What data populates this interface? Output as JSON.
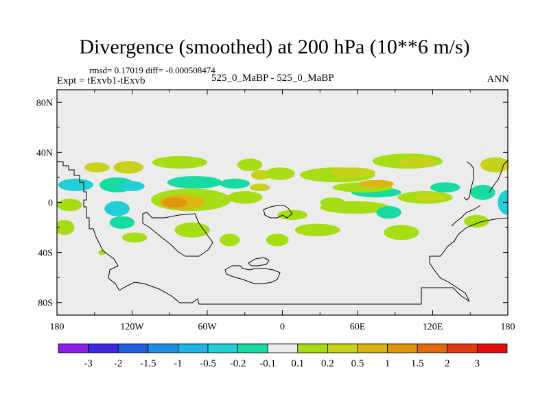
{
  "chart_data": {
    "type": "heatmap",
    "title": "Divergence (smoothed) at 200 hPa (10**6 m/s)",
    "stats_line": "rmsd= 0.17019 diff= -0.000508474",
    "left_label": "Expt = tExvb1-tExvb",
    "center_label": "525_0_MaBP - 525_0_MaBP",
    "right_label": "ANN",
    "x_ticks": [
      {
        "value": -180,
        "label": "180"
      },
      {
        "value": -120,
        "label": "120W"
      },
      {
        "value": -60,
        "label": "60W"
      },
      {
        "value": 0,
        "label": "0"
      },
      {
        "value": 60,
        "label": "60E"
      },
      {
        "value": 120,
        "label": "120E"
      },
      {
        "value": 180,
        "label": "180"
      }
    ],
    "y_ticks": [
      {
        "value": 80,
        "label": "80N"
      },
      {
        "value": 40,
        "label": "40N"
      },
      {
        "value": 0,
        "label": "0"
      },
      {
        "value": -40,
        "label": "40S"
      },
      {
        "value": -80,
        "label": "80S"
      }
    ],
    "xlim": [
      -180,
      180
    ],
    "ylim": [
      -90,
      90
    ],
    "colorbar": {
      "boundaries": [
        "-3",
        "-2",
        "-1.5",
        "-1",
        "-0.5",
        "-0.2",
        "-0.1",
        "0.1",
        "0.2",
        "0.5",
        "1",
        "1.5",
        "2",
        "3"
      ],
      "colors": [
        "#8f1fe6",
        "#3d28e0",
        "#1f5fe0",
        "#1f8fe6",
        "#1fb3e6",
        "#21cfd6",
        "#17dba0",
        "#ececec",
        "#a6dd14",
        "#c8d21c",
        "#dcb414",
        "#e0960c",
        "#e06a10",
        "#e03a10",
        "#e00a0a"
      ]
    },
    "blobs": [
      {
        "lon": -123,
        "lat": 28,
        "rx": 12,
        "ry": 5,
        "level": 9
      },
      {
        "lon": -148,
        "lat": 28,
        "rx": 10,
        "ry": 4,
        "level": 9
      },
      {
        "lon": -82,
        "lat": 32,
        "rx": 22,
        "ry": 5,
        "level": 8
      },
      {
        "lon": -26,
        "lat": 30,
        "rx": 10,
        "ry": 5,
        "level": 8
      },
      {
        "lon": -17,
        "lat": 22,
        "rx": 8,
        "ry": 4,
        "level": 9
      },
      {
        "lon": -2,
        "lat": 23,
        "rx": 12,
        "ry": 5,
        "level": 8
      },
      {
        "lon": 44,
        "lat": 22,
        "rx": 30,
        "ry": 6,
        "level": 8
      },
      {
        "lon": 56,
        "lat": 24,
        "rx": 18,
        "ry": 4,
        "level": 9
      },
      {
        "lon": 100,
        "lat": 33,
        "rx": 28,
        "ry": 6,
        "level": 8
      },
      {
        "lon": 108,
        "lat": 32,
        "rx": 15,
        "ry": 4,
        "level": 9
      },
      {
        "lon": 170,
        "lat": 30,
        "rx": 12,
        "ry": 6,
        "level": 9
      },
      {
        "lon": -165,
        "lat": 14,
        "rx": 14,
        "ry": 5,
        "level": 5
      },
      {
        "lon": -132,
        "lat": 14,
        "rx": 14,
        "ry": 6,
        "level": 6
      },
      {
        "lon": -120,
        "lat": 13,
        "rx": 10,
        "ry": 4,
        "level": 5
      },
      {
        "lon": -70,
        "lat": 16,
        "rx": 22,
        "ry": 5,
        "level": 6
      },
      {
        "lon": -38,
        "lat": 15,
        "rx": 12,
        "ry": 4,
        "level": 6
      },
      {
        "lon": 75,
        "lat": 8,
        "rx": 20,
        "ry": 4,
        "level": 6
      },
      {
        "lon": 130,
        "lat": 12,
        "rx": 12,
        "ry": 4,
        "level": 6
      },
      {
        "lon": 160,
        "lat": 8,
        "rx": 10,
        "ry": 6,
        "level": 6
      },
      {
        "lon": 180,
        "lat": 0,
        "rx": 8,
        "ry": 10,
        "level": 5
      },
      {
        "lon": -73,
        "lat": 2,
        "rx": 32,
        "ry": 9,
        "level": 8
      },
      {
        "lon": -80,
        "lat": 0,
        "rx": 18,
        "ry": 6,
        "level": 10
      },
      {
        "lon": -86,
        "lat": 0,
        "rx": 10,
        "ry": 4,
        "level": 11
      },
      {
        "lon": -30,
        "lat": 4,
        "rx": 14,
        "ry": 5,
        "level": 8
      },
      {
        "lon": -18,
        "lat": 12,
        "rx": 8,
        "ry": 3,
        "level": 9
      },
      {
        "lon": 64,
        "lat": 12,
        "rx": 24,
        "ry": 4,
        "level": 8
      },
      {
        "lon": 75,
        "lat": 15,
        "rx": 14,
        "ry": 3,
        "level": 10
      },
      {
        "lon": 114,
        "lat": 4,
        "rx": 22,
        "ry": 5,
        "level": 8
      },
      {
        "lon": 118,
        "lat": 4,
        "rx": 12,
        "ry": 3,
        "level": 9
      },
      {
        "lon": -170,
        "lat": -2,
        "rx": 10,
        "ry": 5,
        "level": 8
      },
      {
        "lon": -132,
        "lat": -5,
        "rx": 10,
        "ry": 6,
        "level": 5
      },
      {
        "lon": -128,
        "lat": -16,
        "rx": 10,
        "ry": 5,
        "level": 6
      },
      {
        "lon": 58,
        "lat": -4,
        "rx": 28,
        "ry": 5,
        "level": 8
      },
      {
        "lon": 40,
        "lat": 0,
        "rx": 10,
        "ry": 4,
        "level": 8
      },
      {
        "lon": 8,
        "lat": -10,
        "rx": 12,
        "ry": 4,
        "level": 8
      },
      {
        "lon": 85,
        "lat": -8,
        "rx": 10,
        "ry": 5,
        "level": 6
      },
      {
        "lon": 155,
        "lat": -15,
        "rx": 10,
        "ry": 5,
        "level": 8
      },
      {
        "lon": -174,
        "lat": -20,
        "rx": 8,
        "ry": 6,
        "level": 8
      },
      {
        "lon": -118,
        "lat": -28,
        "rx": 10,
        "ry": 4,
        "level": 8
      },
      {
        "lon": -72,
        "lat": -22,
        "rx": 14,
        "ry": 6,
        "level": 8
      },
      {
        "lon": -42,
        "lat": -30,
        "rx": 8,
        "ry": 5,
        "level": 8
      },
      {
        "lon": -4,
        "lat": -30,
        "rx": 9,
        "ry": 5,
        "level": 8
      },
      {
        "lon": 28,
        "lat": -22,
        "rx": 18,
        "ry": 5,
        "level": 8
      },
      {
        "lon": 95,
        "lat": -24,
        "rx": 14,
        "ry": 6,
        "level": 8
      },
      {
        "lon": -144,
        "lat": -40,
        "rx": 3,
        "ry": 2,
        "level": 8
      }
    ]
  }
}
